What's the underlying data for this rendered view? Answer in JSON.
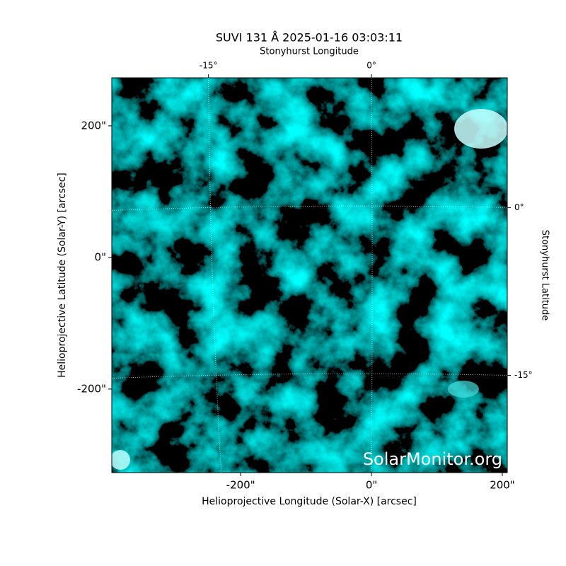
{
  "chart_data": {
    "type": "image",
    "title": "SUVI 131 Å 2025-01-16 03:03:11",
    "xlabel": "Helioprojective Longitude (Solar-X) [arcsec]",
    "ylabel": "Helioprojective Latitude (Solar-Y) [arcsec]",
    "x2label": "Stonyhurst Longitude",
    "y2label": "Stonyhurst Latitude",
    "annotation": "SolarMonitor.org",
    "xlim": [
      -397,
      207.6
    ],
    "ylim": [
      -327,
      273
    ],
    "xticks": [
      {
        "value": -200,
        "label": "-200\""
      },
      {
        "value": 0,
        "label": "0\""
      },
      {
        "value": 200,
        "label": "200\""
      }
    ],
    "yticks": [
      {
        "value": -200,
        "label": "-200\""
      },
      {
        "value": 0,
        "label": "0\""
      },
      {
        "value": 200,
        "label": "200\""
      }
    ],
    "x2lim": [
      -23.9,
      12.5
    ],
    "x2ticks": [
      {
        "value": -15,
        "label": "-15°"
      },
      {
        "value": 0,
        "label": "0°"
      }
    ],
    "y2lim": [
      -23.7,
      11.6
    ],
    "y2ticks": [
      {
        "value": 0,
        "label": "0°"
      },
      {
        "value": -15,
        "label": "-15°"
      }
    ],
    "grid": true
  }
}
